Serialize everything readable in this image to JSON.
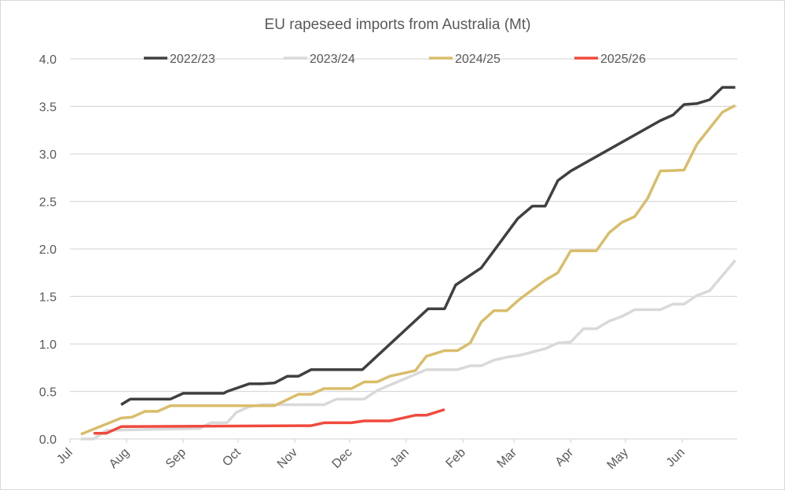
{
  "chart_data": {
    "type": "line",
    "title": "EU rapeseed imports from Australia (Mt)",
    "xlabel": "",
    "ylabel": "",
    "x_ticks": [
      "Jul",
      "Aug",
      "Sep",
      "Oct",
      "Nov",
      "Dec",
      "Jan",
      "Feb",
      "Mar",
      "Apr",
      "May",
      "Jun"
    ],
    "y_ticks": [
      "0.0",
      "0.5",
      "1.0",
      "1.5",
      "2.0",
      "2.5",
      "3.0",
      "3.5",
      "4.0"
    ],
    "ylim": [
      0,
      4.0
    ],
    "xlim": [
      "07-01",
      "06-30"
    ],
    "grid": "horizontal",
    "legend_position": "top",
    "series": [
      {
        "name": "2022/23",
        "color": "#404040",
        "points": [
          [
            "07-29",
            0.36
          ],
          [
            "08-03",
            0.42
          ],
          [
            "08-25",
            0.42
          ],
          [
            "09-01",
            0.48
          ],
          [
            "09-23",
            0.48
          ],
          [
            "09-25",
            0.5
          ],
          [
            "10-07",
            0.58
          ],
          [
            "10-14",
            0.58
          ],
          [
            "10-21",
            0.59
          ],
          [
            "10-28",
            0.66
          ],
          [
            "11-03",
            0.66
          ],
          [
            "11-10",
            0.73
          ],
          [
            "12-08",
            0.73
          ],
          [
            "01-13",
            1.37
          ],
          [
            "01-22",
            1.37
          ],
          [
            "01-28",
            1.62
          ],
          [
            "02-11",
            1.8
          ],
          [
            "03-03",
            2.32
          ],
          [
            "03-11",
            2.45
          ],
          [
            "03-18",
            2.45
          ],
          [
            "03-25",
            2.72
          ],
          [
            "04-01",
            2.82
          ],
          [
            "05-20",
            3.35
          ],
          [
            "05-27",
            3.41
          ],
          [
            "06-02",
            3.52
          ],
          [
            "06-09",
            3.53
          ],
          [
            "06-16",
            3.57
          ],
          [
            "06-23",
            3.7
          ],
          [
            "06-30",
            3.7
          ]
        ]
      },
      {
        "name": "2023/24",
        "color": "#d9d9d9",
        "points": [
          [
            "07-07",
            0.0
          ],
          [
            "07-14",
            0.0
          ],
          [
            "07-21",
            0.09
          ],
          [
            "08-12",
            0.1
          ],
          [
            "09-10",
            0.11
          ],
          [
            "09-16",
            0.17
          ],
          [
            "09-25",
            0.17
          ],
          [
            "09-30",
            0.28
          ],
          [
            "10-07",
            0.34
          ],
          [
            "10-14",
            0.36
          ],
          [
            "11-17",
            0.36
          ],
          [
            "11-24",
            0.42
          ],
          [
            "12-09",
            0.42
          ],
          [
            "12-16",
            0.51
          ],
          [
            "01-12",
            0.73
          ],
          [
            "01-29",
            0.73
          ],
          [
            "02-05",
            0.77
          ],
          [
            "02-11",
            0.77
          ],
          [
            "02-18",
            0.83
          ],
          [
            "02-25",
            0.86
          ],
          [
            "03-04",
            0.88
          ],
          [
            "03-18",
            0.95
          ],
          [
            "03-25",
            1.01
          ],
          [
            "04-01",
            1.02
          ],
          [
            "04-08",
            1.16
          ],
          [
            "04-15",
            1.16
          ],
          [
            "04-22",
            1.24
          ],
          [
            "04-29",
            1.29
          ],
          [
            "05-06",
            1.36
          ],
          [
            "05-20",
            1.36
          ],
          [
            "05-27",
            1.42
          ],
          [
            "06-02",
            1.42
          ],
          [
            "06-09",
            1.51
          ],
          [
            "06-16",
            1.56
          ],
          [
            "06-23",
            1.72
          ],
          [
            "06-30",
            1.88
          ]
        ]
      },
      {
        "name": "2024/25",
        "color": "#d9bd6a",
        "points": [
          [
            "07-07",
            0.05
          ],
          [
            "07-29",
            0.22
          ],
          [
            "08-04",
            0.23
          ],
          [
            "08-11",
            0.29
          ],
          [
            "08-18",
            0.29
          ],
          [
            "08-25",
            0.35
          ],
          [
            "10-21",
            0.35
          ],
          [
            "11-03",
            0.47
          ],
          [
            "11-10",
            0.47
          ],
          [
            "11-17",
            0.53
          ],
          [
            "12-02",
            0.53
          ],
          [
            "12-09",
            0.6
          ],
          [
            "12-16",
            0.6
          ],
          [
            "12-23",
            0.66
          ],
          [
            "01-06",
            0.72
          ],
          [
            "01-12",
            0.87
          ],
          [
            "01-22",
            0.93
          ],
          [
            "01-29",
            0.93
          ],
          [
            "02-05",
            1.01
          ],
          [
            "02-11",
            1.23
          ],
          [
            "02-18",
            1.35
          ],
          [
            "02-25",
            1.35
          ],
          [
            "03-04",
            1.47
          ],
          [
            "03-18",
            1.67
          ],
          [
            "03-25",
            1.75
          ],
          [
            "04-01",
            1.98
          ],
          [
            "04-15",
            1.98
          ],
          [
            "04-22",
            2.17
          ],
          [
            "04-29",
            2.28
          ],
          [
            "05-06",
            2.34
          ],
          [
            "05-13",
            2.53
          ],
          [
            "05-20",
            2.82
          ],
          [
            "06-02",
            2.83
          ],
          [
            "06-09",
            3.1
          ],
          [
            "06-16",
            3.27
          ],
          [
            "06-23",
            3.44
          ],
          [
            "06-30",
            3.51
          ]
        ]
      },
      {
        "name": "2025/26",
        "color": "#f04a3e",
        "points": [
          [
            "07-14",
            0.06
          ],
          [
            "07-21",
            0.06
          ],
          [
            "07-29",
            0.13
          ],
          [
            "11-10",
            0.14
          ],
          [
            "11-17",
            0.17
          ],
          [
            "12-02",
            0.17
          ],
          [
            "12-09",
            0.19
          ],
          [
            "12-23",
            0.19
          ],
          [
            "01-06",
            0.25
          ],
          [
            "01-12",
            0.25
          ],
          [
            "01-22",
            0.31
          ]
        ]
      }
    ]
  }
}
